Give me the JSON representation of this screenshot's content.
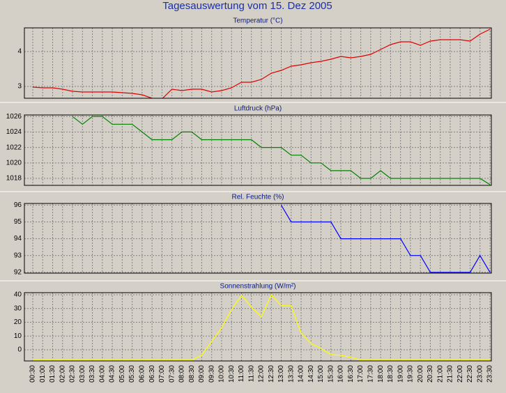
{
  "title": "Tagesauswertung vom 15. Dez 2005",
  "chart_data": [
    {
      "type": "line",
      "title": "Temperatur (°C)",
      "color": "#e00000",
      "ylim": [
        2.66,
        4.68
      ],
      "yticks": [
        3,
        4
      ],
      "grid": true,
      "values": [
        2.98,
        2.96,
        2.96,
        2.92,
        2.86,
        2.84,
        2.84,
        2.84,
        2.84,
        2.82,
        2.8,
        2.76,
        2.66,
        2.64,
        2.92,
        2.88,
        2.92,
        2.92,
        2.84,
        2.88,
        2.96,
        3.12,
        3.12,
        3.2,
        3.38,
        3.46,
        3.58,
        3.62,
        3.68,
        3.72,
        3.78,
        3.86,
        3.82,
        3.86,
        3.92,
        4.06,
        4.2,
        4.28,
        4.28,
        4.18,
        4.3,
        4.34,
        4.34,
        4.34,
        4.3,
        4.5,
        4.64
      ]
    },
    {
      "type": "line",
      "title": "Luftdruck (hPa)",
      "color": "#008000",
      "ylim": [
        1017.1,
        1026.2
      ],
      "yticks": [
        1018,
        1020,
        1022,
        1024,
        1026
      ],
      "grid": true,
      "values": [
        null,
        null,
        null,
        null,
        1026,
        1025,
        1026,
        1026,
        1025,
        1025,
        1025,
        1024,
        1023,
        1023,
        1023,
        1024,
        1024,
        1023,
        1023,
        1023,
        1023,
        1023,
        1023,
        1022,
        1022,
        1022,
        1021,
        1021,
        1020,
        1020,
        1019,
        1019,
        1019,
        1018,
        1018,
        1019,
        1018,
        1018,
        1018,
        1018,
        1018,
        1018,
        1018,
        1018,
        1018,
        1018,
        1017.2
      ]
    },
    {
      "type": "line",
      "title": "Rel. Feuchte (%)",
      "color": "#0000ff",
      "ylim": [
        91.95,
        96.1
      ],
      "yticks": [
        92,
        93,
        94,
        95,
        96
      ],
      "grid": true,
      "values": [
        null,
        null,
        null,
        null,
        null,
        null,
        null,
        null,
        null,
        null,
        null,
        null,
        null,
        null,
        null,
        null,
        null,
        null,
        null,
        null,
        null,
        null,
        null,
        null,
        null,
        96,
        95,
        95,
        95,
        95,
        95,
        94,
        94,
        94,
        94,
        94,
        94,
        94,
        93,
        93,
        92,
        92,
        92,
        92,
        92,
        93,
        92
      ]
    },
    {
      "type": "line",
      "title": "Sonnenstrahlung (W/m²)",
      "color": "#ffff00",
      "ylim": [
        -8.1,
        41.5
      ],
      "yticks": [
        0,
        10,
        20,
        30,
        40
      ],
      "grid": true,
      "categories": [
        "00:30",
        "01:00",
        "01:30",
        "02:00",
        "02:30",
        "03:00",
        "03:30",
        "04:00",
        "04:30",
        "05:00",
        "05:30",
        "06:00",
        "06:30",
        "07:00",
        "07:30",
        "08:00",
        "08:30",
        "09:00",
        "09:30",
        "10:00",
        "10:30",
        "11:00",
        "11:30",
        "12:00",
        "12:30",
        "13:00",
        "13:30",
        "14:00",
        "14:30",
        "15:00",
        "15:30",
        "16:00",
        "16:30",
        "17:00",
        "17:30",
        "18:00",
        "18:30",
        "19:00",
        "19:30",
        "20:00",
        "20:30",
        "21:00",
        "21:30",
        "22:00",
        "22:30",
        "23:00",
        "23:30"
      ],
      "values": [
        -7.5,
        -7.5,
        -7.5,
        -7.5,
        -7.5,
        -7.5,
        -7.5,
        -7.5,
        -7.5,
        -7.5,
        -7.5,
        -7.5,
        -7.5,
        -7.5,
        -7.5,
        -7.5,
        -7.5,
        -4,
        6,
        16,
        29,
        39.5,
        31,
        24,
        40,
        32,
        32,
        12,
        4.5,
        1,
        -3.5,
        -4,
        -5.5,
        -7.5,
        -7.5,
        -7.5,
        -7.5,
        -7.5,
        -7.5,
        -7.5,
        -7.5,
        -7.5,
        -7.5,
        -7.5,
        -7.5,
        -7.5,
        -7.5
      ]
    }
  ]
}
